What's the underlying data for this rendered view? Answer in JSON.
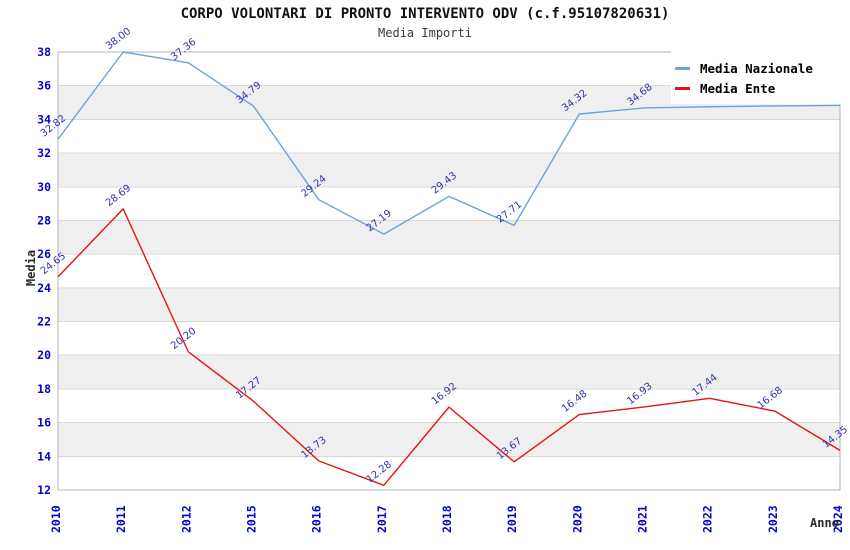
{
  "chart_data": {
    "type": "line",
    "title": "CORPO VOLONTARI DI PRONTO INTERVENTO ODV (c.f.95107820631)",
    "subtitle": "Media Importi",
    "xlabel": "Anno",
    "ylabel": "Media",
    "categories": [
      "2010",
      "2011",
      "2012",
      "2015",
      "2016",
      "2017",
      "2018",
      "2019",
      "2020",
      "2021",
      "2022",
      "2023",
      "2024"
    ],
    "ylim": [
      12,
      38
    ],
    "y_tick_step": 2,
    "grid": "horizontal",
    "alternating_bands": true,
    "legend_position": "top-right-inside",
    "series": [
      {
        "name": "Media Nazionale",
        "color": "#6ea3da",
        "values": [
          32.82,
          38.0,
          37.36,
          34.79,
          29.24,
          27.19,
          29.43,
          27.71,
          34.32,
          34.68,
          34.75,
          34.8,
          34.83
        ],
        "labels": [
          "32.82",
          "38.00",
          "37.36",
          "34.79",
          "29.24",
          "27.19",
          "29.43",
          "27.71",
          "34.32",
          "34.68",
          "",
          "",
          "34.83"
        ]
      },
      {
        "name": "Media Ente",
        "color": "#e41414",
        "values": [
          24.65,
          28.69,
          20.2,
          17.27,
          13.73,
          12.28,
          16.92,
          13.67,
          16.48,
          16.93,
          17.44,
          16.68,
          14.35
        ],
        "labels": [
          "24.65",
          "28.69",
          "20.20",
          "17.27",
          "13.73",
          "12.28",
          "16.92",
          "13.67",
          "16.48",
          "16.93",
          "17.44",
          "16.68",
          "14.35"
        ]
      }
    ]
  },
  "colors": {
    "tick_label": "#0202cf",
    "data_label": "#3434aa",
    "band_gray": "#efefef",
    "gridline": "#d8d8d8",
    "plot_border": "#b4b4b4",
    "title": "#111111",
    "subtitle": "#3c3c3c",
    "axis_title": "#2b2b2b",
    "background": "#ffffff"
  }
}
